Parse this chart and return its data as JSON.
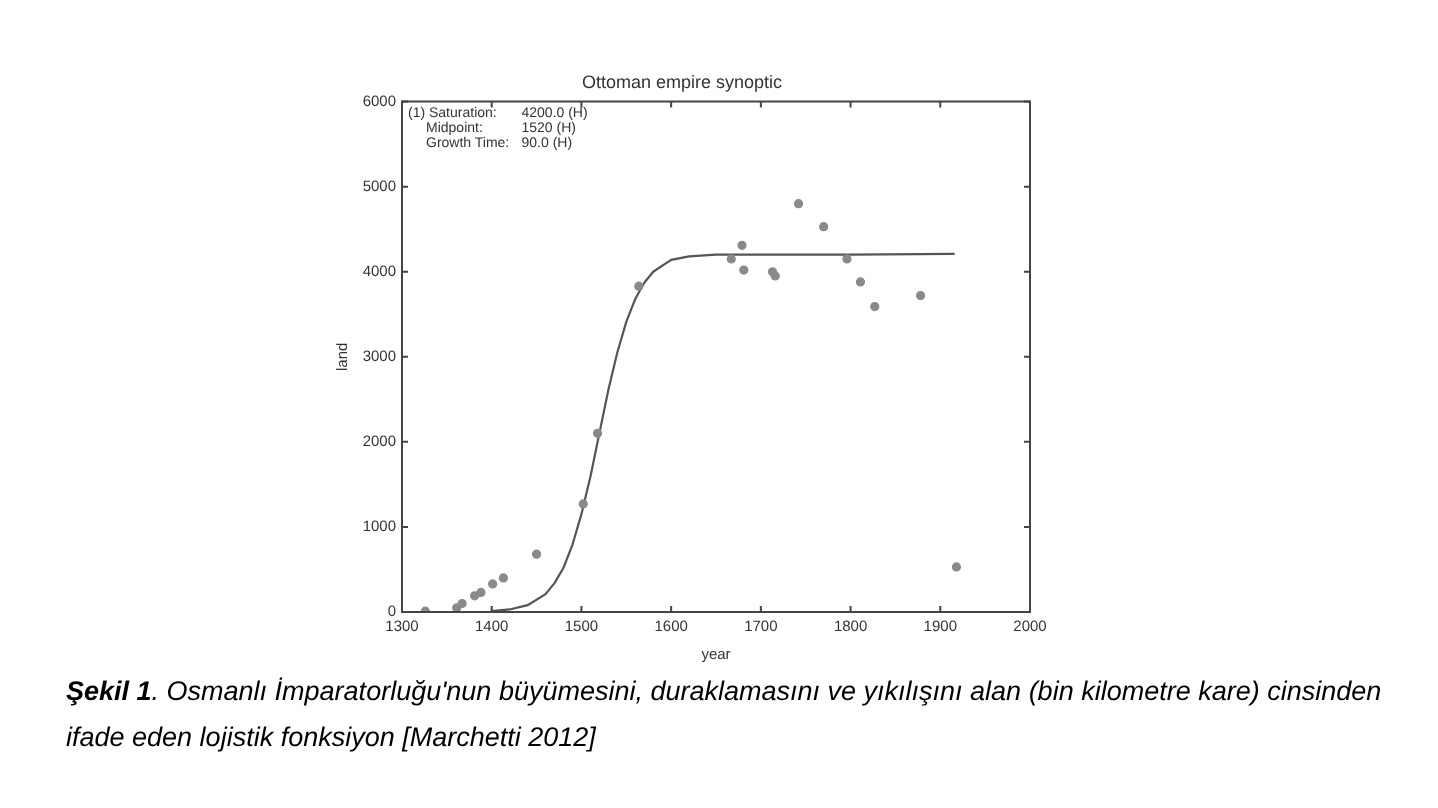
{
  "chart_data": {
    "type": "scatter",
    "title": "Ottoman empire synoptic",
    "xlabel": "year",
    "ylabel": "land",
    "xlim": [
      1300,
      2000
    ],
    "xticks": [
      1300,
      1400,
      1500,
      1600,
      1700,
      1800,
      1900,
      2000
    ],
    "ylim": [
      0,
      6000
    ],
    "yticks": [
      0,
      1000,
      2000,
      3000,
      4000,
      5000,
      6000
    ],
    "marker": "circle",
    "series": [
      {
        "type": "scatter",
        "color": "#8a8a8a",
        "x": [
          1326,
          1361,
          1367,
          1381,
          1388,
          1401,
          1413,
          1450,
          1502,
          1518,
          1564,
          1667,
          1679,
          1681,
          1713,
          1716,
          1742,
          1770,
          1796,
          1811,
          1827,
          1878,
          1918
        ],
        "values": [
          10,
          50,
          100,
          190,
          230,
          330,
          400,
          680,
          1270,
          2100,
          3830,
          4150,
          4310,
          4020,
          4000,
          3950,
          4800,
          4530,
          4150,
          3880,
          3590,
          3720,
          530
        ]
      },
      {
        "type": "line",
        "color": "#555555",
        "marker": "none",
        "line_style": "solid",
        "x": [
          1400,
          1420,
          1440,
          1460,
          1470,
          1480,
          1490,
          1500,
          1510,
          1520,
          1530,
          1540,
          1550,
          1560,
          1570,
          1580,
          1600,
          1620,
          1650,
          1700,
          1800,
          1915
        ],
        "values": [
          10,
          30,
          80,
          210,
          340,
          520,
          790,
          1150,
          1590,
          2100,
          2610,
          3050,
          3410,
          3680,
          3870,
          4000,
          4140,
          4180,
          4200,
          4200,
          4200,
          4210
        ]
      }
    ],
    "annotations": [
      "(1) Saturation: 4200.0 (H)",
      "Midpoint: 1520 (H)",
      "Growth Time: 90.0 (H)",
      "Şekil 1. Osmanlı İmparatorluğu'nun büyümesini, duraklamasını ve yıkılışını alan (bin kilometre kare) cinsinden ifade eden lojistik fonksiyon [Marchetti 2012]"
    ]
  }
}
